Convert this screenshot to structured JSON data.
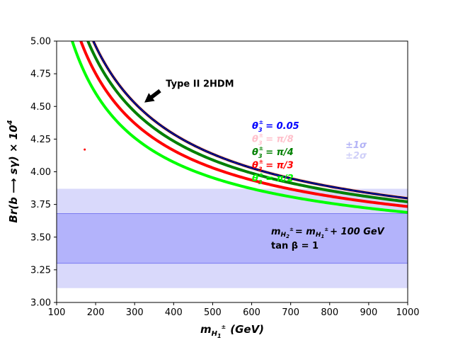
{
  "chart_data": {
    "type": "line",
    "title": "",
    "xlabel_main": "m",
    "xlabel_sub": "H",
    "xlabel_subsub": "1",
    "xlabel_sup": "±",
    "xlabel_unit": "(GeV)",
    "ylabel_text": "Br(b ⟶ sγ) × 10",
    "ylabel_exp": "4",
    "xlim": [
      100,
      1000
    ],
    "ylim": [
      3.0,
      5.0
    ],
    "xticks": [
      100,
      200,
      300,
      400,
      500,
      600,
      700,
      800,
      900,
      1000
    ],
    "yticks": [
      3.0,
      3.25,
      3.5,
      3.75,
      4.0,
      4.25,
      4.5,
      4.75,
      5.0
    ],
    "ytick_labels": [
      "3.00",
      "3.25",
      "3.50",
      "3.75",
      "4.00",
      "4.25",
      "4.50",
      "4.75",
      "5.00"
    ],
    "bands": [
      {
        "name": "±2σ",
        "y_low": 3.11,
        "y_high": 3.87,
        "color": "#d9d9fb"
      },
      {
        "name": "±1σ",
        "y_low": 3.3,
        "y_high": 3.68,
        "color": "#b3b3fb",
        "edge": "#7b7bf0"
      }
    ],
    "band_legend": [
      {
        "label": "±1σ",
        "color": "#b3b3f6"
      },
      {
        "label": "±2σ",
        "color": "#cfcff8"
      }
    ],
    "series": [
      {
        "name": "θ = π/2",
        "theta_value": "π/2",
        "color": "#00ff00",
        "asymptote": 3.3,
        "coef": 69.2,
        "exponent": 0.75,
        "stroke": 4
      },
      {
        "name": "θ = π/3",
        "theta_value": "π/3",
        "color": "#ff0000",
        "asymptote": 3.3,
        "coef": 77.2,
        "exponent": 0.75,
        "stroke": 4
      },
      {
        "name": "θ = π/4",
        "theta_value": "π/4",
        "color": "#008000",
        "asymptote": 3.3,
        "coef": 83.6,
        "exponent": 0.75,
        "stroke": 4
      },
      {
        "name": "θ = π/8",
        "theta_value": "π/8",
        "color": "#ffc0cb",
        "asymptote": 3.3,
        "coef": 88.4,
        "exponent": 0.75,
        "stroke": 5
      },
      {
        "name": "Type II 2HDM",
        "theta_value": "",
        "color": "#000000",
        "asymptote": 3.3,
        "coef": 88.4,
        "exponent": 0.75,
        "stroke": 3
      },
      {
        "name": "θ = 0.05",
        "theta_value": "0.05",
        "color": "#0000ff",
        "asymptote": 3.3,
        "coef": 88.4,
        "exponent": 0.75,
        "stroke": 1
      }
    ],
    "legend": [
      {
        "theta": "θ",
        "sub": "3",
        "sup": "±",
        "value": "= 0.05",
        "color": "#0000ff"
      },
      {
        "theta": "θ",
        "sub": "3",
        "sup": "±",
        "value": "= π/8",
        "color": "#ffc0cb"
      },
      {
        "theta": "θ",
        "sub": "3",
        "sup": "±",
        "value": "= π/4",
        "color": "#008000"
      },
      {
        "theta": "θ",
        "sub": "3",
        "sup": "±",
        "value": "= π/3",
        "color": "#ff0000"
      },
      {
        "theta": "θ",
        "sub": "3",
        "sup": "±",
        "value": "= π/2",
        "color": "#00ff00"
      }
    ],
    "annotations": {
      "type2_label": "Type II 2HDM",
      "type2_arrow_tip": [
        325,
        4.53
      ],
      "type2_arrow_tail": [
        365,
        4.62
      ],
      "type2_text_at": [
        380,
        4.65
      ],
      "mass_relation_m": "m",
      "mass_relation_h2": "H",
      "mass_relation_h2_sub": "2",
      "mass_relation_eq": "= m",
      "mass_relation_h1": "H",
      "mass_relation_h1_sub": "1",
      "mass_relation_sup": "±",
      "mass_relation_tail": "+ 100 GeV",
      "tan_beta": "tan β = 1",
      "red_dot": [
        172,
        4.17
      ]
    }
  }
}
